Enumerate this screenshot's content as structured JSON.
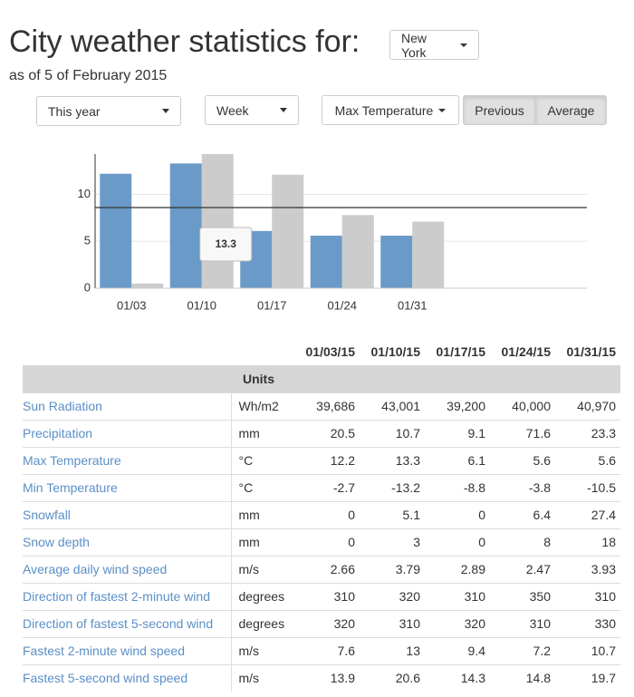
{
  "header": {
    "title": "City weather statistics for:",
    "city": "New York",
    "subtitle": "as of 5 of February 2015"
  },
  "controls": {
    "period": "This year",
    "interval": "Week",
    "measure": "Max Temperature",
    "toggles": [
      "Previous",
      "Average"
    ]
  },
  "chart_data": {
    "type": "bar",
    "categories": [
      "01/03",
      "01/10",
      "01/17",
      "01/24",
      "01/31"
    ],
    "series": [
      {
        "color": "#6a9ac7",
        "values": [
          12.2,
          13.3,
          6.1,
          5.6,
          5.6
        ]
      },
      {
        "color": "#cccccc",
        "values": [
          0.5,
          14.3,
          12.1,
          7.8,
          7.1
        ]
      }
    ],
    "tooltip": {
      "series": 0,
      "index": 1
    },
    "reference_line": 8.6,
    "ylim": [
      0,
      14.3
    ],
    "yticks": [
      0,
      5,
      10
    ],
    "grid": true
  },
  "table": {
    "columns": [
      "01/03/15",
      "01/10/15",
      "01/17/15",
      "01/24/15",
      "01/31/15"
    ],
    "units_header": "Units",
    "rows": [
      [
        "Sun Radiation",
        "Wh/m2",
        "39,686",
        "43,001",
        "39,200",
        "40,000",
        "40,970"
      ],
      [
        "Precipitation",
        "mm",
        "20.5",
        "10.7",
        "9.1",
        "71.6",
        "23.3"
      ],
      [
        "Max Temperature",
        "°C",
        "12.2",
        "13.3",
        "6.1",
        "5.6",
        "5.6"
      ],
      [
        "Min Temperature",
        "°C",
        "-2.7",
        "-13.2",
        "-8.8",
        "-3.8",
        "-10.5"
      ],
      [
        "Snowfall",
        "mm",
        "0",
        "5.1",
        "0",
        "6.4",
        "27.4"
      ],
      [
        "Snow depth",
        "mm",
        "0",
        "3",
        "0",
        "8",
        "18"
      ],
      [
        "Average daily wind speed",
        "m/s",
        "2.66",
        "3.79",
        "2.89",
        "2.47",
        "3.93"
      ],
      [
        "Direction of fastest 2-minute wind",
        "degrees",
        "310",
        "320",
        "310",
        "350",
        "310"
      ],
      [
        "Direction of fastest 5-second wind",
        "degrees",
        "320",
        "310",
        "320",
        "310",
        "330"
      ],
      [
        "Fastest 2-minute wind speed",
        "m/s",
        "7.6",
        "13",
        "9.4",
        "7.2",
        "10.7"
      ],
      [
        "Fastest 5-second wind speed",
        "m/s",
        "13.9",
        "20.6",
        "14.3",
        "14.8",
        "19.7"
      ]
    ]
  }
}
